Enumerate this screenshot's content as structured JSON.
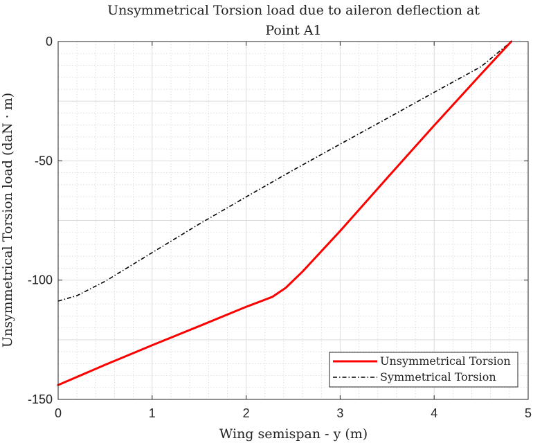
{
  "chart_data": {
    "type": "line",
    "title": "Unsymmetrical Torsion load due to aileron deflection at",
    "title_line2": "Point A1",
    "xlabel": "Wing semispan - y (m)",
    "ylabel": "Unsymmetrical Torsion load (daN · m)",
    "xlim": [
      0,
      5
    ],
    "ylim": [
      -150,
      0
    ],
    "xticks": [
      "0",
      "1",
      "2",
      "3",
      "4",
      "5"
    ],
    "yticks": [
      "0",
      "-50",
      "-100",
      "-150"
    ],
    "grid": true,
    "minor_grid": true,
    "legend_position": "bottom-right",
    "series": [
      {
        "name": "Unsymmetrical Torsion",
        "color": "#ff0000",
        "style": "solid",
        "x": [
          0,
          0.5,
          1.0,
          1.5,
          2.0,
          2.28,
          2.42,
          2.6,
          3.0,
          3.5,
          4.0,
          4.5,
          4.82
        ],
        "y": [
          -144,
          -135.5,
          -127.3,
          -119.3,
          -111.2,
          -107,
          -103.3,
          -96.4,
          -79.4,
          -57.2,
          -35.2,
          -13.6,
          0
        ]
      },
      {
        "name": "Symmetrical Torsion",
        "color": "#000000",
        "style": "dashdot",
        "x": [
          0,
          0.2,
          0.5,
          1.0,
          1.5,
          2.0,
          2.5,
          3.0,
          3.5,
          4.0,
          4.5,
          4.82
        ],
        "y": [
          -108.8,
          -106.5,
          -100.5,
          -88.5,
          -76.5,
          -65.1,
          -53.9,
          -43.0,
          -32.2,
          -21.3,
          -10.5,
          0
        ]
      }
    ]
  }
}
